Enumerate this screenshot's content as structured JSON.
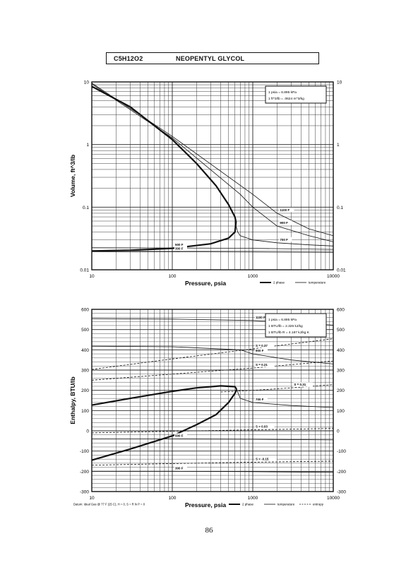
{
  "header": {
    "formula": "C5H12O2",
    "name": "NEOPENTYL GLYCOL"
  },
  "page_number": "86",
  "chart_data": [
    {
      "type": "line",
      "xlabel": "Pressure,  psia",
      "ylabel": "Volume,  ft^3/lb",
      "x_scale": "log",
      "y_scale": "log",
      "xlim": [
        10,
        10000
      ],
      "ylim": [
        0.01,
        10
      ],
      "x_ticks": [
        "10",
        "100",
        "1000",
        "10000"
      ],
      "y_ticks_left": [
        "10",
        "1",
        "0.1",
        "0.01"
      ],
      "y_ticks_right": [
        "10",
        "1",
        "0.1",
        "0.01"
      ],
      "grid": true,
      "info_box": [
        "1 psia  =  6.895 kPa",
        "1 ft^3/lb  =  .0624 m^3/kg"
      ],
      "legend": [
        "2 phase",
        "temperature"
      ],
      "legend_position": "bottom-right",
      "series": [
        {
          "name": "2 phase",
          "style": "thick",
          "x": [
            10,
            30,
            100,
            200,
            350,
            500,
            600,
            620,
            600,
            500,
            300,
            100,
            30,
            10
          ],
          "y": [
            8.5,
            4,
            1.2,
            0.5,
            0.22,
            0.11,
            0.07,
            0.058,
            0.04,
            0.032,
            0.026,
            0.022,
            0.0205,
            0.02
          ]
        },
        {
          "label": "1100 F",
          "style": "thin",
          "x": [
            10,
            100,
            1000,
            2000,
            5000,
            10000
          ],
          "y": [
            9.6,
            1.35,
            0.16,
            0.08,
            0.045,
            0.035
          ]
        },
        {
          "label": "900 F",
          "style": "thin",
          "x": [
            10,
            100,
            700,
            1000,
            2000,
            5000,
            10000
          ],
          "y": [
            9.3,
            1.28,
            0.16,
            0.1,
            0.05,
            0.035,
            0.028
          ]
        },
        {
          "label": "700 F",
          "style": "thin",
          "x": [
            600,
            650,
            700,
            1000,
            2000,
            5000,
            10000
          ],
          "y": [
            0.058,
            0.04,
            0.035,
            0.03,
            0.027,
            0.025,
            0.024
          ]
        },
        {
          "label": "500 F",
          "style": "thin",
          "x": [
            10,
            100,
            1000,
            10000
          ],
          "y": [
            0.0225,
            0.0223,
            0.022,
            0.0212
          ]
        },
        {
          "label": "300 F",
          "style": "thin",
          "x": [
            10,
            100,
            1000,
            10000
          ],
          "y": [
            0.0195,
            0.0194,
            0.0192,
            0.019
          ]
        }
      ]
    },
    {
      "type": "line",
      "xlabel": "Pressure,  psia",
      "ylabel": "Enthalpy,  BTU/lb",
      "x_scale": "log",
      "xlim": [
        10,
        10000
      ],
      "ylim": [
        -300,
        600
      ],
      "x_ticks": [
        "10",
        "100",
        "1000",
        "10000"
      ],
      "y_ticks_left": [
        "600",
        "500",
        "400",
        "300",
        "200",
        "100",
        "0",
        "-100",
        "-200",
        "-300"
      ],
      "y_ticks_right": [
        "600",
        "500",
        "400",
        "300",
        "200",
        "100",
        "0",
        "-100",
        "-200",
        "-300"
      ],
      "grid": true,
      "info_box": [
        "1 psia  =  6.895 kPa",
        "1 BTU/lb  =  2.326 kJ/kg",
        "1 BTU/lb R  =  4.187 kJ/kg K"
      ],
      "legend": [
        "2 phase",
        "temperature",
        "entropy"
      ],
      "legend_position": "bottom-right",
      "footnote": "Datum: Ideal Gas @ 77 F (25 C),  H = 0,  S = R ln P = 0",
      "series": [
        {
          "name": "2 phase",
          "style": "thick",
          "x": [
            10,
            30,
            100,
            200,
            400,
            600,
            630
          ],
          "y": [
            127,
            160,
            195,
            212,
            222,
            218,
            205
          ]
        },
        {
          "name": "2 phase",
          "style": "thick",
          "x": [
            10,
            30,
            100,
            200,
            350,
            500,
            600,
            630
          ],
          "y": [
            -145,
            -90,
            -25,
            30,
            80,
            140,
            185,
            205
          ]
        },
        {
          "label": "1100 F",
          "style": "thin",
          "x": [
            10,
            100,
            1000,
            3000,
            10000
          ],
          "y": [
            554,
            552,
            545,
            535,
            522
          ]
        },
        {
          "label": "900 F",
          "style": "thin",
          "x": [
            10,
            100,
            700,
            1000,
            3000,
            10000
          ],
          "y": [
            418,
            415,
            400,
            380,
            350,
            330
          ]
        },
        {
          "label": "700 F",
          "style": "thin",
          "x": [
            630,
            700,
            1000,
            3000,
            10000
          ],
          "y": [
            205,
            160,
            140,
            125,
            115
          ]
        },
        {
          "label": "500 F",
          "style": "thin",
          "x": [
            10,
            100,
            1000,
            10000
          ],
          "y": [
            -40,
            -40,
            -42,
            -45
          ]
        },
        {
          "label": "300 F",
          "style": "thin",
          "x": [
            10,
            100,
            1000,
            10000
          ],
          "y": [
            -200,
            -200,
            -202,
            -205
          ]
        },
        {
          "label": "S = 0.37",
          "style": "dashed",
          "x": [
            10,
            100,
            1000,
            10000
          ],
          "y": [
            303,
            355,
            405,
            455
          ]
        },
        {
          "label": "S = 0.21",
          "style": "dashed",
          "x": [
            10,
            100,
            1000,
            10000
          ],
          "y": [
            250,
            280,
            310,
            345
          ]
        },
        {
          "label": "S = 0.31",
          "style": "dashed",
          "x": [
            400,
            1000,
            3000,
            10000
          ],
          "y": [
            192,
            200,
            212,
            228
          ]
        },
        {
          "label": "S = 0.03",
          "style": "dashed",
          "x": [
            10,
            100,
            1000,
            10000
          ],
          "y": [
            -10,
            -2,
            5,
            12
          ]
        },
        {
          "label": "S = -0.15",
          "style": "dashed",
          "x": [
            10,
            100,
            1000,
            10000
          ],
          "y": [
            -170,
            -162,
            -155,
            -150
          ]
        }
      ]
    }
  ]
}
